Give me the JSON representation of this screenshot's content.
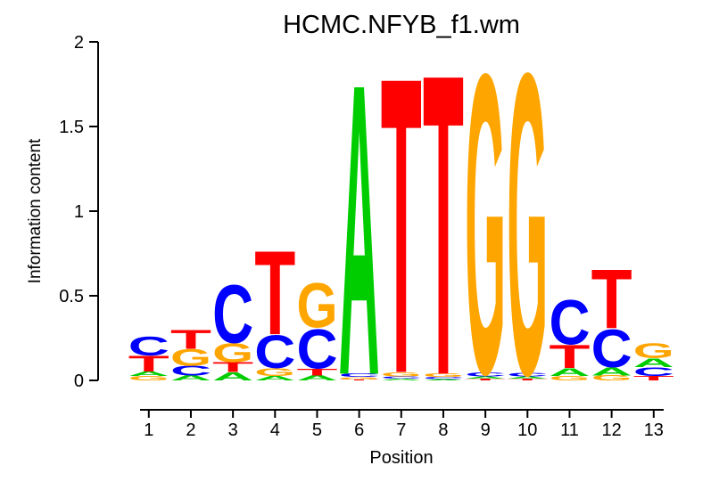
{
  "title": "HCMC.NFYB_f1.wm",
  "y_axis": {
    "label": "Information content",
    "tick_labels": [
      "0",
      "0.5",
      "1",
      "1.5",
      "2"
    ],
    "tick_values": [
      0,
      0.5,
      1,
      1.5,
      2
    ]
  },
  "x_axis": {
    "label": "Position",
    "tick_labels": [
      "1",
      "2",
      "3",
      "4",
      "5",
      "6",
      "7",
      "8",
      "9",
      "10",
      "11",
      "12",
      "13"
    ]
  },
  "colors": {
    "A": "#00CD00",
    "C": "#0000FF",
    "G": "#FFA500",
    "T": "#FF0000"
  },
  "chart_data": {
    "type": "sequence-logo",
    "title": "HCMC.NFYB_f1.wm",
    "xlabel": "Position",
    "ylabel": "Information content",
    "ylim": [
      0,
      2
    ],
    "positions": [
      1,
      2,
      3,
      4,
      5,
      6,
      7,
      8,
      9,
      10,
      11,
      12,
      13
    ],
    "stacks": [
      [
        {
          "base": "C",
          "ic": 0.115
        },
        {
          "base": "T",
          "ic": 0.095
        },
        {
          "base": "A",
          "ic": 0.027
        },
        {
          "base": "G",
          "ic": 0.026
        }
      ],
      [
        {
          "base": "T",
          "ic": 0.115
        },
        {
          "base": "G",
          "ic": 0.1
        },
        {
          "base": "C",
          "ic": 0.058
        },
        {
          "base": "A",
          "ic": 0.03
        }
      ],
      [
        {
          "base": "C",
          "ic": 0.35
        },
        {
          "base": "G",
          "ic": 0.115
        },
        {
          "base": "T",
          "ic": 0.058
        },
        {
          "base": "A",
          "ic": 0.05
        }
      ],
      [
        {
          "base": "T",
          "ic": 0.51
        },
        {
          "base": "C",
          "ic": 0.2
        },
        {
          "base": "G",
          "ic": 0.047
        },
        {
          "base": "A",
          "ic": 0.026
        }
      ],
      [
        {
          "base": "G",
          "ic": 0.27
        },
        {
          "base": "C",
          "ic": 0.24
        },
        {
          "base": "T",
          "ic": 0.042
        },
        {
          "base": "A",
          "ic": 0.03
        }
      ],
      [
        {
          "base": "A",
          "ic": 1.77
        },
        {
          "base": "C",
          "ic": 0.02
        },
        {
          "base": "G",
          "ic": 0.015
        },
        {
          "base": "T",
          "ic": 0.005
        }
      ],
      [
        {
          "base": "T",
          "ic": 1.8
        },
        {
          "base": "G",
          "ic": 0.025
        },
        {
          "base": "C",
          "ic": 0.015
        },
        {
          "base": "A",
          "ic": 0.01
        }
      ],
      [
        {
          "base": "T",
          "ic": 1.83
        },
        {
          "base": "G",
          "ic": 0.02
        },
        {
          "base": "C",
          "ic": 0.012
        },
        {
          "base": "A",
          "ic": 0.008
        }
      ],
      [
        {
          "base": "G",
          "ic": 1.82
        },
        {
          "base": "C",
          "ic": 0.025
        },
        {
          "base": "A",
          "ic": 0.015
        },
        {
          "base": "T",
          "ic": 0.01
        }
      ],
      [
        {
          "base": "G",
          "ic": 1.83
        },
        {
          "base": "C",
          "ic": 0.02
        },
        {
          "base": "A",
          "ic": 0.015
        },
        {
          "base": "T",
          "ic": 0.01
        }
      ],
      [
        {
          "base": "C",
          "ic": 0.27
        },
        {
          "base": "T",
          "ic": 0.14
        },
        {
          "base": "A",
          "ic": 0.047
        },
        {
          "base": "G",
          "ic": 0.026
        }
      ],
      [
        {
          "base": "T",
          "ic": 0.358
        },
        {
          "base": "C",
          "ic": 0.23
        },
        {
          "base": "A",
          "ic": 0.05
        },
        {
          "base": "G",
          "ic": 0.03
        }
      ],
      [
        {
          "base": "G",
          "ic": 0.09
        },
        {
          "base": "A",
          "ic": 0.053
        },
        {
          "base": "C",
          "ic": 0.053
        },
        {
          "base": "T",
          "ic": 0.026
        }
      ]
    ]
  }
}
